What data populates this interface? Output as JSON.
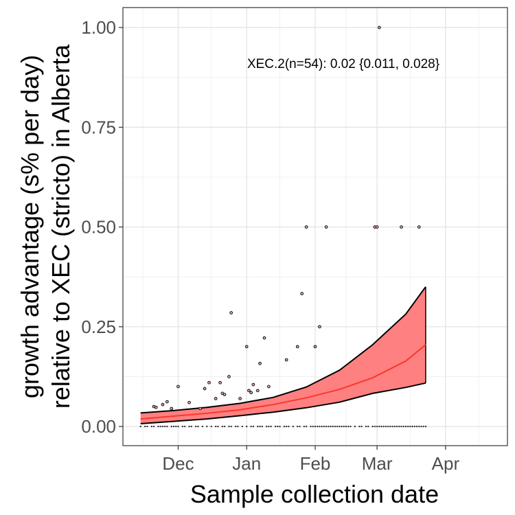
{
  "chart_data": {
    "type": "line",
    "xlabel": "Sample collection date",
    "ylabel_lines": [
      "growth advantage (s% per day)",
      "relative to XEC (stricto) in Alberta"
    ],
    "annotation": "XEC.2(n=54): 0.02 {0.011, 0.028}",
    "x_ticks": [
      {
        "label": "Dec",
        "date": "2024-12-01"
      },
      {
        "label": "Jan",
        "date": "2025-01-01"
      },
      {
        "label": "Feb",
        "date": "2025-02-01"
      },
      {
        "label": "Mar",
        "date": "2025-03-01"
      },
      {
        "label": "Apr",
        "date": "2025-04-01"
      }
    ],
    "y_ticks": [
      {
        "label": "0.00",
        "value": 0
      },
      {
        "label": "0.25",
        "value": 0.25
      },
      {
        "label": "0.50",
        "value": 0.5
      },
      {
        "label": "0.75",
        "value": 0.75
      },
      {
        "label": "1.00",
        "value": 1
      }
    ],
    "xlim": [
      "2024-11-06",
      "2025-04-29"
    ],
    "ylim": [
      -0.048,
      1.05
    ],
    "grid": true,
    "colors": {
      "fit_line": "#f8372e",
      "ribbon_fill": "#ff8080",
      "ribbon_edge": "#000000",
      "points": "#000000",
      "point_fill": "#d9a3a3"
    },
    "series": [
      {
        "role": "fit",
        "x": [
          "2024-11-14",
          "2024-11-29",
          "2024-12-14",
          "2024-12-29",
          "2025-01-13",
          "2025-01-28",
          "2025-02-12",
          "2025-02-27",
          "2025-03-14",
          "2025-03-23"
        ],
        "values": [
          0.019,
          0.026,
          0.033,
          0.042,
          0.055,
          0.072,
          0.093,
          0.122,
          0.164,
          0.205
        ]
      },
      {
        "role": "lower",
        "x": [
          "2024-11-14",
          "2024-11-29",
          "2024-12-14",
          "2024-12-29",
          "2025-01-13",
          "2025-01-28",
          "2025-02-12",
          "2025-02-27",
          "2025-03-14",
          "2025-03-23"
        ],
        "values": [
          0.007,
          0.013,
          0.019,
          0.027,
          0.036,
          0.047,
          0.061,
          0.083,
          0.098,
          0.109
        ]
      },
      {
        "role": "upper",
        "x": [
          "2024-11-14",
          "2024-11-29",
          "2024-12-14",
          "2024-12-29",
          "2025-01-13",
          "2025-01-28",
          "2025-02-12",
          "2025-02-27",
          "2025-03-14",
          "2025-03-23"
        ],
        "values": [
          0.034,
          0.04,
          0.048,
          0.058,
          0.073,
          0.099,
          0.141,
          0.205,
          0.282,
          0.35
        ]
      }
    ],
    "points": [
      {
        "x": "2024-11-20",
        "y": 0.05
      },
      {
        "x": "2024-11-21",
        "y": 0.048
      },
      {
        "x": "2024-11-24",
        "y": 0.055
      },
      {
        "x": "2024-11-26",
        "y": 0.062
      },
      {
        "x": "2024-11-28",
        "y": 0.045
      },
      {
        "x": "2024-12-01",
        "y": 0.1
      },
      {
        "x": "2024-12-06",
        "y": 0.06
      },
      {
        "x": "2024-12-11",
        "y": 0.045
      },
      {
        "x": "2024-12-13",
        "y": 0.095
      },
      {
        "x": "2024-12-15",
        "y": 0.11
      },
      {
        "x": "2024-12-18",
        "y": 0.07
      },
      {
        "x": "2024-12-20",
        "y": 0.11
      },
      {
        "x": "2024-12-21",
        "y": 0.083
      },
      {
        "x": "2024-12-22",
        "y": 0.08
      },
      {
        "x": "2024-12-24",
        "y": 0.125
      },
      {
        "x": "2024-12-25",
        "y": 0.285
      },
      {
        "x": "2024-12-29",
        "y": 0.07
      },
      {
        "x": "2025-01-01",
        "y": 0.2
      },
      {
        "x": "2025-01-02",
        "y": 0.09
      },
      {
        "x": "2025-01-03",
        "y": 0.085
      },
      {
        "x": "2025-01-04",
        "y": 0.105
      },
      {
        "x": "2025-01-06",
        "y": 0.09
      },
      {
        "x": "2025-01-07",
        "y": 0.158
      },
      {
        "x": "2025-01-09",
        "y": 0.222
      },
      {
        "x": "2025-01-11",
        "y": 0.1
      },
      {
        "x": "2025-01-19",
        "y": 0.167
      },
      {
        "x": "2025-01-24",
        "y": 0.2
      },
      {
        "x": "2025-01-26",
        "y": 0.333
      },
      {
        "x": "2025-01-28",
        "y": 0.5
      },
      {
        "x": "2025-02-01",
        "y": 0.2
      },
      {
        "x": "2025-02-03",
        "y": 0.25
      },
      {
        "x": "2025-02-06",
        "y": 0.5
      },
      {
        "x": "2025-02-28",
        "y": 0.5
      },
      {
        "x": "2025-03-01",
        "y": 0.5
      },
      {
        "x": "2025-03-02",
        "y": 1.0
      },
      {
        "x": "2025-03-12",
        "y": 0.5
      },
      {
        "x": "2025-03-20",
        "y": 0.5
      }
    ],
    "zero_points": {
      "start": "2024-11-14",
      "end": "2025-03-23"
    }
  }
}
